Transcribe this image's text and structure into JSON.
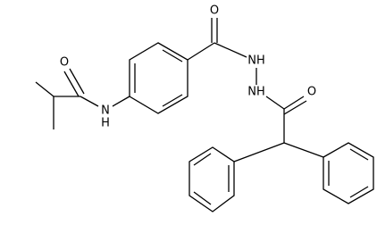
{
  "atoms": [
    {
      "label": "O"
    },
    {
      "label": "NH"
    },
    {
      "label": "NH"
    },
    {
      "label": "O"
    },
    {
      "label": "O"
    },
    {
      "label": "N"
    },
    {
      "label": "H"
    }
  ]
}
